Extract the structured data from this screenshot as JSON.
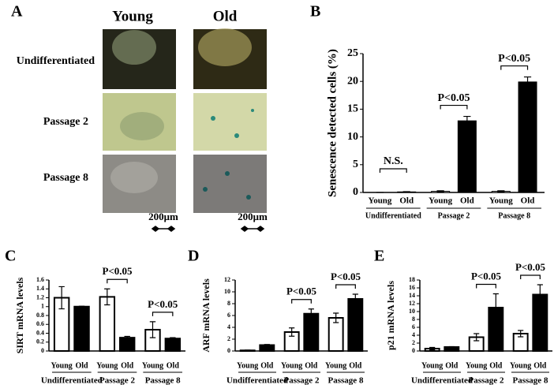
{
  "panel_a": {
    "panel": "A",
    "columns": [
      "Young",
      "Old"
    ],
    "rows": [
      "Undifferentiated",
      "Passage 2",
      "Passage 8"
    ],
    "scale_labels": [
      "200μm",
      "200μm"
    ]
  },
  "chart_data": [
    {
      "type": "bar",
      "panel": "B",
      "ylabel": "Senescence detected cells (%)",
      "categories": [
        "Young",
        "Old",
        "Young",
        "Old",
        "Young",
        "Old"
      ],
      "groups": [
        "Undifferentiated",
        "Passage 2",
        "Passage 8"
      ],
      "values": [
        0,
        0.1,
        0.2,
        12.9,
        0.2,
        19.9
      ],
      "errors": [
        0,
        0.05,
        0.1,
        0.8,
        0.1,
        0.9
      ],
      "colors": [
        "#ffffff",
        "#000000",
        "#ffffff",
        "#000000",
        "#ffffff",
        "#000000"
      ],
      "ylim": [
        0,
        25
      ],
      "yticks": [
        0,
        5,
        10,
        15,
        20,
        25
      ],
      "annotations": [
        {
          "group": 0,
          "label": "N.S."
        },
        {
          "group": 1,
          "label": "P<0.05"
        },
        {
          "group": 2,
          "label": "P<0.05"
        }
      ]
    },
    {
      "type": "bar",
      "panel": "C",
      "ylabel": "SIRT mRNA levels",
      "categories": [
        "Young",
        "Old",
        "Young",
        "Old",
        "Young",
        "Old"
      ],
      "groups": [
        "Undifferentiated",
        "Passage 2",
        "Passage 8"
      ],
      "values": [
        1.2,
        1.0,
        1.22,
        0.3,
        0.48,
        0.28
      ],
      "errors": [
        0.25,
        0.01,
        0.18,
        0.03,
        0.18,
        0.02
      ],
      "colors": [
        "#ffffff",
        "#000000",
        "#ffffff",
        "#000000",
        "#ffffff",
        "#000000"
      ],
      "ylim": [
        0,
        1.6
      ],
      "yticks": [
        0,
        0.2,
        0.4,
        0.6,
        0.8,
        1,
        1.2,
        1.4,
        1.6
      ],
      "annotations": [
        {
          "group": 1,
          "label": "P<0.05"
        },
        {
          "group": 2,
          "label": "P<0.05"
        }
      ]
    },
    {
      "type": "bar",
      "panel": "D",
      "ylabel": "ARF mRNA levels",
      "categories": [
        "Young",
        "Old",
        "Young",
        "Old",
        "Young",
        "Old"
      ],
      "groups": [
        "Undifferentiated",
        "Passage 2",
        "Passage 8"
      ],
      "values": [
        0.1,
        1.0,
        3.2,
        6.3,
        5.6,
        8.8
      ],
      "errors": [
        0.05,
        0.1,
        0.7,
        0.8,
        0.8,
        0.8
      ],
      "colors": [
        "#ffffff",
        "#000000",
        "#ffffff",
        "#000000",
        "#ffffff",
        "#000000"
      ],
      "ylim": [
        0,
        12
      ],
      "yticks": [
        0,
        2,
        4,
        6,
        8,
        10,
        12
      ],
      "annotations": [
        {
          "group": 1,
          "label": "P<0.05"
        },
        {
          "group": 2,
          "label": "P<0.05"
        }
      ]
    },
    {
      "type": "bar",
      "panel": "E",
      "ylabel": "p21 mRNA levels",
      "categories": [
        "Young",
        "Old",
        "Young",
        "Old",
        "Young",
        "Old"
      ],
      "groups": [
        "Undifferentiated",
        "Passage 2",
        "Passage 8"
      ],
      "values": [
        0.6,
        1.0,
        3.5,
        11,
        4.4,
        14.3
      ],
      "errors": [
        0.3,
        0.1,
        0.9,
        3.5,
        0.8,
        2.5
      ],
      "colors": [
        "#ffffff",
        "#000000",
        "#ffffff",
        "#000000",
        "#ffffff",
        "#000000"
      ],
      "ylim": [
        0,
        18
      ],
      "yticks": [
        0,
        2,
        4,
        6,
        8,
        10,
        12,
        14,
        16,
        18
      ],
      "annotations": [
        {
          "group": 1,
          "label": "P<0.05"
        },
        {
          "group": 2,
          "label": "P<0.05"
        }
      ]
    }
  ]
}
